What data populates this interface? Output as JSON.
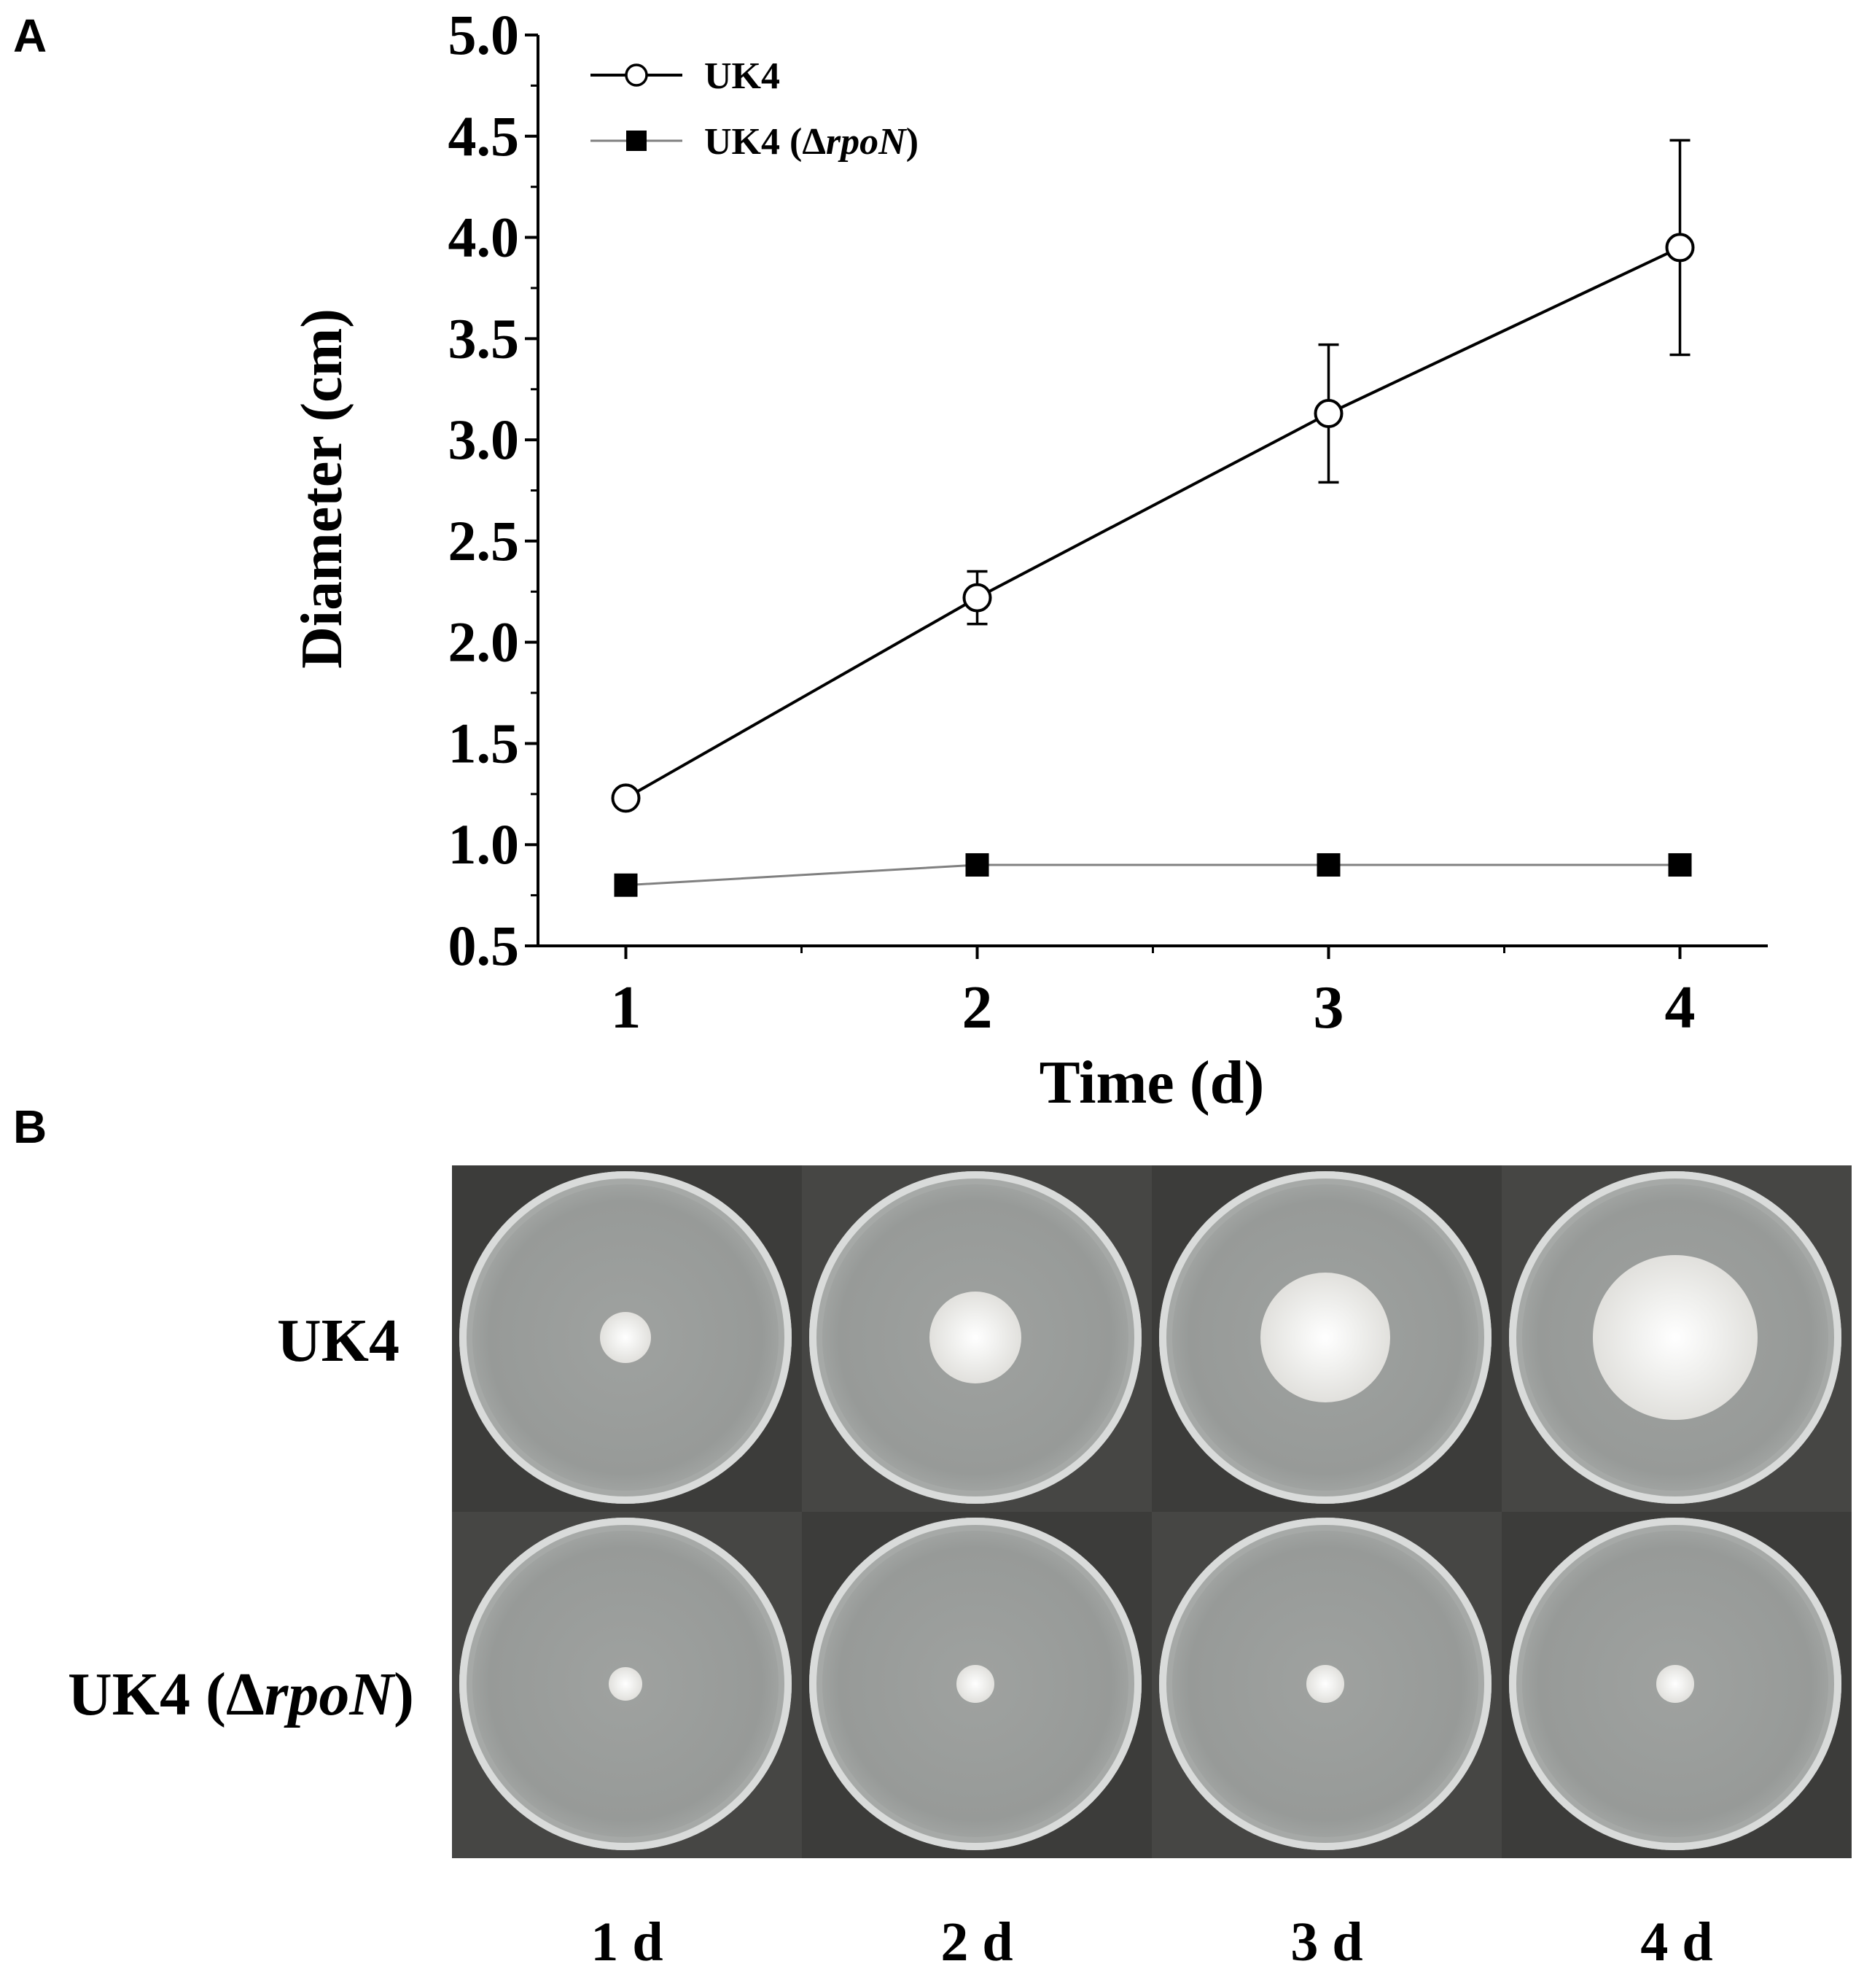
{
  "panels": {
    "a_letter": "A",
    "b_letter": "B"
  },
  "chart_data": {
    "type": "line",
    "title": "",
    "xlabel": "Time (d)",
    "ylabel": "Diameter (cm)",
    "xlim": [
      0.75,
      4.25
    ],
    "ylim": [
      0.5,
      5.0
    ],
    "x_ticks": [
      "1",
      "2",
      "3",
      "4"
    ],
    "y_ticks": [
      "0.5",
      "1.0",
      "1.5",
      "2.0",
      "2.5",
      "3.0",
      "3.5",
      "4.0",
      "4.5",
      "5.0"
    ],
    "grid": false,
    "legend_position": "top-left",
    "legend": {
      "uk4": "UK4",
      "rpon_prefix": "UK4 (Δ",
      "rpon_italic": "rpoN",
      "rpon_suffix": ")"
    },
    "x": [
      1,
      2,
      3,
      4
    ],
    "series": [
      {
        "name": "UK4",
        "marker": "open-circle",
        "line_color": "#000000",
        "values": [
          1.23,
          2.22,
          3.13,
          3.95
        ],
        "errors": [
          0.03,
          0.13,
          0.34,
          0.53
        ]
      },
      {
        "name": "UK4 (ΔrpoN)",
        "marker": "filled-square",
        "line_color": "#808080",
        "values": [
          0.8,
          0.9,
          0.9,
          0.9
        ],
        "errors": [
          0,
          0,
          0,
          0
        ]
      }
    ]
  },
  "plates": {
    "rows": [
      {
        "prefix": "UK4",
        "italic": "",
        "suffix": "",
        "colony_diameters_cm": [
          1.23,
          2.22,
          3.13,
          3.95
        ]
      },
      {
        "prefix": "UK4 (Δ",
        "italic": "rpoN",
        "suffix": ")",
        "colony_diameters_cm": [
          0.8,
          0.9,
          0.9,
          0.9
        ]
      }
    ],
    "days": [
      "1 d",
      "2 d",
      "3 d",
      "4 d"
    ]
  }
}
